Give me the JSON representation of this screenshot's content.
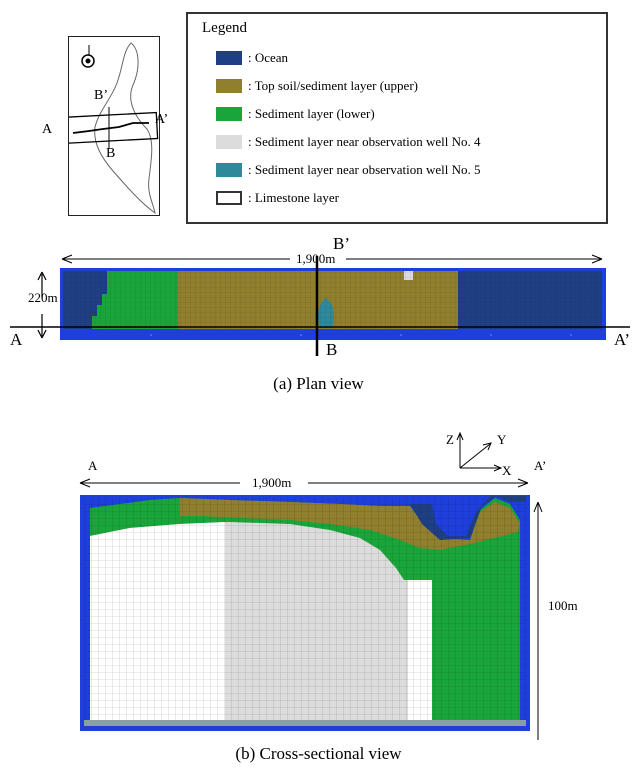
{
  "legend": {
    "title": "Legend",
    "items": [
      {
        "label": ": Ocean",
        "color": "#1f3f85"
      },
      {
        "label": ": Top soil/sediment layer (upper)",
        "color": "#8f7f2e"
      },
      {
        "label": ": Sediment layer (lower)",
        "color": "#1aa53a"
      },
      {
        "label": ": Sediment layer near observation well No. 4",
        "color": "#dcdcdc"
      },
      {
        "label": ": Sediment layer near observation well No. 5",
        "color": "#2e8a9a"
      },
      {
        "label": ": Limestone layer",
        "color": "#ffffff"
      }
    ]
  },
  "map_inset": {
    "label_a": "A",
    "label_a_prime": "A’",
    "label_b": "B",
    "label_b_prime": "B’"
  },
  "plan_view": {
    "width_label": "1,900m",
    "height_label": "220m",
    "label_a": "A",
    "label_a_prime": "A’",
    "label_b": "B",
    "label_b_prime": "B’",
    "caption": "(a) Plan view"
  },
  "cross_section": {
    "label_a": "A",
    "label_a_prime": "A’",
    "width_label": "1,900m",
    "depth_label": "100m",
    "axis_z": "Z",
    "axis_y": "Y",
    "axis_x": "X",
    "caption": "(b) Cross-sectional view"
  },
  "colors": {
    "border_blue": "#1e3fdc",
    "ocean": "#1f3f85",
    "upper": "#8f7f2e",
    "lower": "#1aa53a",
    "well4": "#dcdcdc",
    "well5": "#2e8a9a",
    "limestone": "#ffffff"
  }
}
